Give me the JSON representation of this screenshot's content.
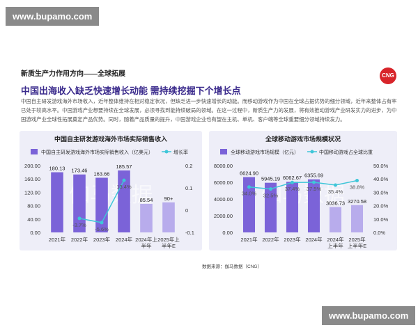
{
  "watermark_top": "www.bupamo.com",
  "watermark_bottom": "www.bupamo.com",
  "section": "新质生产力作用方向——全球拓展",
  "logo": "CNG",
  "title": "中国出海收入缺乏快速增长动能 需持续挖掘下个增长点",
  "body": "中国自主研发游戏海外市场收入，近年整体维持在相对稳定状况，但缺乏进一步快速增长的动能。而移动游戏作为中国在全球占据优势的细分领域，近年来整体占有率已处于较高水平。中国游戏产业想要持续在全球发展，必须寻找到能持续破局的领域。在这一过程中，新质生产力的发展，将有效推动游戏产业研发实力的进步，为中国游戏产业全球性拓展奠定产品优势。同时，随着产品质量的提升，中国游戏企业也有望在主机、单机、客户端等全球重要细分领域持续发力。",
  "chart_watermark": "伽马数据",
  "source": "数据来源：伽马数据（CNG）",
  "chart_data": [
    {
      "type": "bar",
      "title": "中国自主研发游戏海外市场实际销售收入",
      "categories": [
        "2021年",
        "2022年",
        "2023年",
        "2024年",
        "2024年上半年",
        "2025年上半年E"
      ],
      "series": [
        {
          "name": "中国自主研发游戏海外市场实际销售收入（亿美元）",
          "colors": [
            "#7b63d8",
            "#7b63d8",
            "#7b63d8",
            "#7b63d8",
            "#b8acec",
            "#b8acec"
          ],
          "values": [
            180.13,
            173.46,
            163.66,
            185.57,
            85.54,
            90
          ],
          "value_labels": [
            "180.13",
            "173.46",
            "163.66",
            "185.57",
            "85.54",
            "90+"
          ]
        },
        {
          "name": "增长率",
          "type": "line",
          "axis": "y2",
          "color": "#3ec6d8",
          "values": [
            null,
            -0.037,
            -0.056,
            0.134,
            null,
            null
          ],
          "value_labels": [
            null,
            "-3.7%",
            "-5.6%",
            "13.4%",
            null,
            null
          ]
        }
      ],
      "ylim": [
        0,
        200
      ],
      "yticks": [
        {
          "value": 0,
          "label": "0.00"
        },
        {
          "value": 40,
          "label": "40.00"
        },
        {
          "value": 80,
          "label": "80.00"
        },
        {
          "value": 120,
          "label": "120.00"
        },
        {
          "value": 160,
          "label": "160.00"
        },
        {
          "value": 200,
          "label": "200.00"
        }
      ],
      "y2lim": [
        -0.1,
        0.2
      ],
      "y2ticks": [
        -0.1,
        0,
        0.1,
        0.2
      ]
    },
    {
      "type": "bar",
      "title": "全球移动游戏市场规模状况",
      "categories": [
        "2021年",
        "2022年",
        "2023年",
        "2024年",
        "2024年上半年",
        "2025年上半年E"
      ],
      "series": [
        {
          "name": "全球移动游戏市场规模（亿元）",
          "colors": [
            "#7b63d8",
            "#7b63d8",
            "#7b63d8",
            "#7b63d8",
            "#b8acec",
            "#b8acec"
          ],
          "values": [
            6624.9,
            5945.19,
            6062.67,
            6355.69,
            3036.73,
            3270.58
          ],
          "value_labels": [
            "6624.90",
            "5945.19",
            "6062.67",
            "6355.69",
            "3036.73",
            "3270.58"
          ]
        },
        {
          "name": "中国移动游戏占全球比重",
          "type": "line",
          "axis": "y2",
          "color": "#3ec6d8",
          "values": [
            34.0,
            32.5,
            37.4,
            37.5,
            35.4,
            38.8
          ],
          "value_labels": [
            "34.0%",
            "32.5%",
            "37.4%",
            "37.5%",
            "35.4%",
            "38.8%"
          ]
        }
      ],
      "ylim": [
        0,
        8000
      ],
      "yticks": [
        {
          "value": 0,
          "label": "0.00"
        },
        {
          "value": 2000,
          "label": "2000.00"
        },
        {
          "value": 4000,
          "label": "4000.00"
        },
        {
          "value": 6000,
          "label": "6000.00"
        },
        {
          "value": 8000,
          "label": "8000.00"
        }
      ],
      "y2lim": [
        0,
        50
      ],
      "y2ticks": [
        {
          "value": 0,
          "label": "0.0%"
        },
        {
          "value": 10,
          "label": "10.0%"
        },
        {
          "value": 20,
          "label": "20.0%"
        },
        {
          "value": 30,
          "label": "30.0%"
        },
        {
          "value": 40,
          "label": "40.0%"
        },
        {
          "value": 50,
          "label": "50.0%"
        }
      ]
    }
  ]
}
